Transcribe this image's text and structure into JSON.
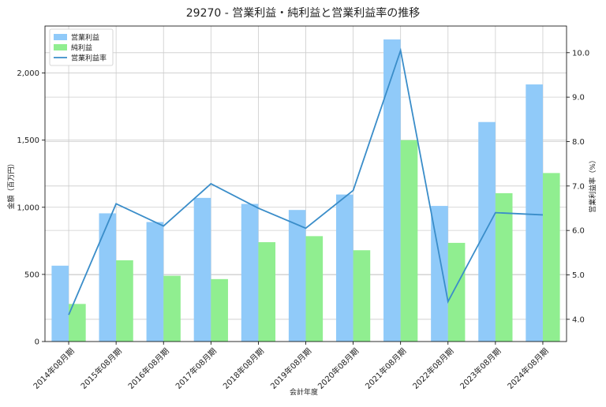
{
  "chart_data": {
    "type": "bar",
    "title": "29270 - 営業利益・純利益と営業利益率の推移",
    "xlabel": "会計年度",
    "ylabel": "金額（百万円）",
    "y2label": "営業利益率（%）",
    "categories": [
      "2014年08月期",
      "2015年08月期",
      "2016年08月期",
      "2017年08月期",
      "2018年08月期",
      "2019年08月期",
      "2020年08月期",
      "2021年08月期",
      "2022年08月期",
      "2023年08月期",
      "2024年08月期"
    ],
    "series": [
      {
        "name": "営業利益",
        "type": "bar",
        "axis": "left",
        "color": "#90caf9",
        "values": [
          565,
          955,
          890,
          1070,
          1025,
          980,
          1095,
          2250,
          1010,
          1635,
          1915
        ]
      },
      {
        "name": "純利益",
        "type": "bar",
        "axis": "left",
        "color": "#90ee90",
        "values": [
          280,
          605,
          490,
          465,
          740,
          785,
          680,
          1500,
          735,
          1105,
          1255
        ]
      },
      {
        "name": "営業利益率",
        "type": "line",
        "axis": "right",
        "color": "#3a8dc9",
        "values": [
          4.1,
          6.6,
          6.1,
          7.05,
          6.5,
          6.05,
          6.9,
          10.05,
          4.4,
          6.4,
          6.35
        ]
      }
    ],
    "ylim": [
      0,
      2350
    ],
    "yticks": [
      0,
      500,
      1000,
      1500,
      2000
    ],
    "ytick_labels": [
      "0",
      "500",
      "1,000",
      "1,500",
      "2,000"
    ],
    "y2lim": [
      3.5,
      10.6
    ],
    "y2ticks": [
      4.0,
      5.0,
      6.0,
      7.0,
      8.0,
      9.0,
      10.0
    ],
    "y2tick_labels": [
      "4.0",
      "5.0",
      "6.0",
      "7.0",
      "8.0",
      "9.0",
      "10.0"
    ],
    "grid": true,
    "legend_position": "top-left"
  }
}
